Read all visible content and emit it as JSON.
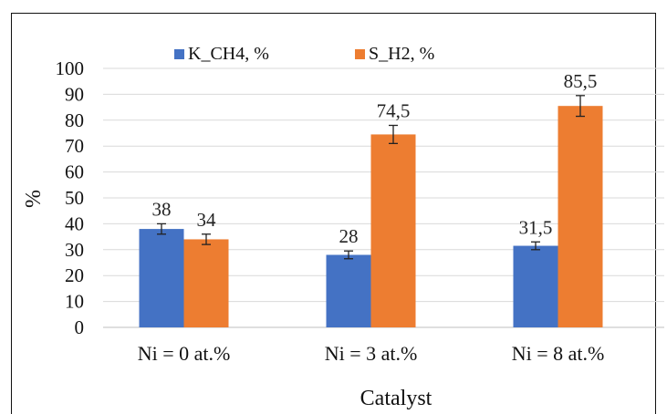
{
  "chart_data": {
    "type": "bar",
    "categories": [
      "Ni =  0 at.%",
      "Ni = 3 at.%",
      "Ni = 8 at.%"
    ],
    "series": [
      {
        "name": "K_CH4, %",
        "values": [
          38,
          28,
          31.5
        ],
        "labels": [
          "38",
          "28",
          "31,5"
        ],
        "error": [
          2,
          1.5,
          1.5
        ],
        "color": "#4472C4"
      },
      {
        "name": "S_H2, %",
        "values": [
          34,
          74.5,
          85.5
        ],
        "labels": [
          "34",
          "74,5",
          "85,5"
        ],
        "error": [
          2,
          3.5,
          4
        ],
        "color": "#ED7D31"
      }
    ],
    "xlabel": "Catalyst",
    "ylabel": "%",
    "ylim": [
      0,
      100
    ],
    "yticks": [
      "0",
      "10",
      "20",
      "30",
      "40",
      "50",
      "60",
      "70",
      "80",
      "90",
      "100"
    ],
    "grid": true,
    "legend": "top"
  }
}
